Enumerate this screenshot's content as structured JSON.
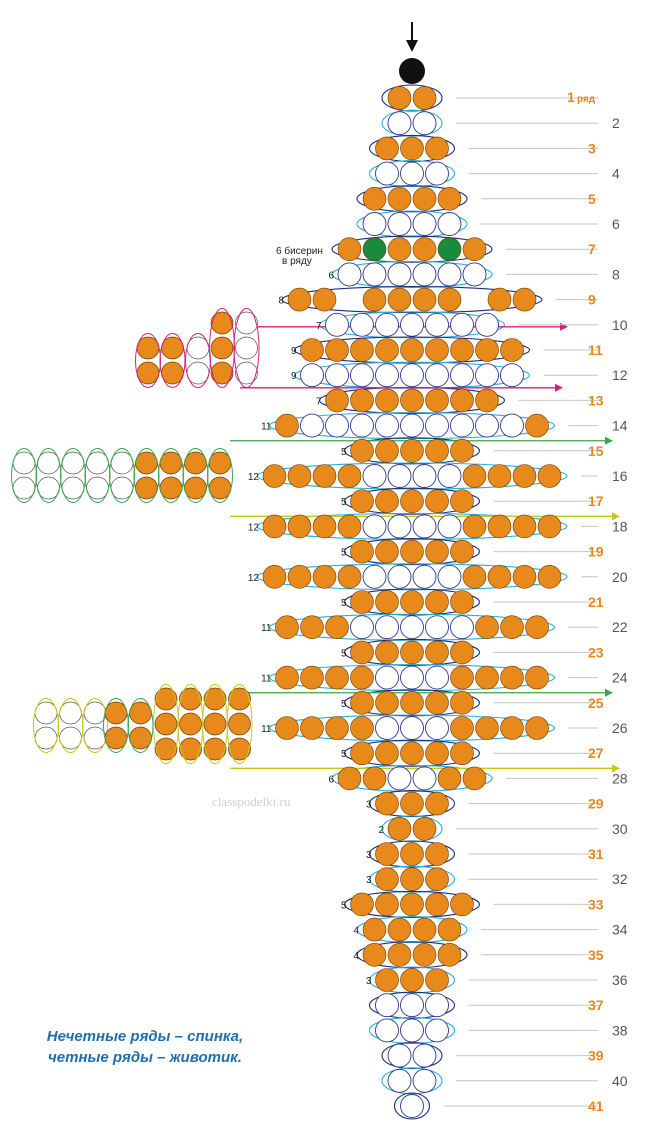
{
  "first_row_label": "1",
  "first_row_suffix": "ряд",
  "note_line1": "6 бисерин",
  "note_line2": "в ряду",
  "legend_line1": "Нечетные ряды –  спинка,",
  "legend_line2": "четные ряды – животик.",
  "watermark": "classpodelki.ru",
  "colors": {
    "orange_bead": "#e8891c",
    "green_bead": "#1a8a3c",
    "black_bead": "#111111",
    "odd_label": "#e8891c",
    "thread_blue": "#2ab0d8",
    "thread_navy": "#1c2f7a",
    "thread_magenta": "#d6217a",
    "thread_green": "#3aa54a",
    "thread_yellow": "#c8c814"
  },
  "top_bead": "black",
  "rows": [
    {
      "n": "1",
      "beads": [
        "o",
        "o"
      ]
    },
    {
      "n": "2",
      "beads": [
        "w",
        "w"
      ]
    },
    {
      "n": "3",
      "beads": [
        "o",
        "o",
        "o"
      ]
    },
    {
      "n": "4",
      "beads": [
        "w",
        "w",
        "w"
      ]
    },
    {
      "n": "5",
      "beads": [
        "o",
        "o",
        "o",
        "o"
      ]
    },
    {
      "n": "6",
      "beads": [
        "w",
        "w",
        "w",
        "w"
      ]
    },
    {
      "n": "7",
      "count": "",
      "beads": [
        "o",
        "g",
        "o",
        "o",
        "g",
        "o"
      ]
    },
    {
      "n": "8",
      "count": "6",
      "beads": [
        "w",
        "w",
        "w",
        "w",
        "w",
        "w"
      ]
    },
    {
      "n": "9",
      "count": "8",
      "beads": [
        "o",
        "o",
        "_",
        "o",
        "o",
        "o",
        "o",
        "_",
        "o",
        "o"
      ]
    },
    {
      "n": "10",
      "count": "7",
      "beads": [
        "w",
        "w",
        "w",
        "w",
        "w",
        "w",
        "w"
      ]
    },
    {
      "n": "11",
      "count": "9",
      "beads": [
        "o",
        "o",
        "o",
        "o",
        "o",
        "o",
        "o",
        "o",
        "o"
      ]
    },
    {
      "n": "12",
      "count": "9",
      "beads": [
        "w",
        "w",
        "w",
        "w",
        "w",
        "w",
        "w",
        "w",
        "w"
      ]
    },
    {
      "n": "13",
      "count": "7",
      "beads": [
        "o",
        "o",
        "o",
        "o",
        "o",
        "o",
        "o"
      ]
    },
    {
      "n": "14",
      "count": "11",
      "beads": [
        "o",
        "w",
        "w",
        "w",
        "w",
        "w",
        "w",
        "w",
        "w",
        "w",
        "o"
      ]
    },
    {
      "n": "15",
      "count": "5",
      "beads": [
        "o",
        "o",
        "o",
        "o",
        "o"
      ]
    },
    {
      "n": "16",
      "count": "12",
      "beads": [
        "o",
        "o",
        "o",
        "o",
        "w",
        "w",
        "w",
        "w",
        "o",
        "o",
        "o",
        "o"
      ]
    },
    {
      "n": "17",
      "count": "5",
      "beads": [
        "o",
        "o",
        "o",
        "o",
        "o"
      ]
    },
    {
      "n": "18",
      "count": "12",
      "beads": [
        "o",
        "o",
        "o",
        "o",
        "w",
        "w",
        "w",
        "w",
        "o",
        "o",
        "o",
        "o"
      ]
    },
    {
      "n": "19",
      "count": "5",
      "beads": [
        "o",
        "o",
        "o",
        "o",
        "o"
      ]
    },
    {
      "n": "20",
      "count": "12",
      "beads": [
        "o",
        "o",
        "o",
        "o",
        "w",
        "w",
        "w",
        "w",
        "o",
        "o",
        "o",
        "o"
      ]
    },
    {
      "n": "21",
      "count": "5",
      "beads": [
        "o",
        "o",
        "o",
        "o",
        "o"
      ]
    },
    {
      "n": "22",
      "count": "11",
      "beads": [
        "o",
        "o",
        "o",
        "w",
        "w",
        "w",
        "w",
        "w",
        "o",
        "o",
        "o"
      ]
    },
    {
      "n": "23",
      "count": "5",
      "beads": [
        "o",
        "o",
        "o",
        "o",
        "o"
      ]
    },
    {
      "n": "24",
      "count": "11",
      "beads": [
        "o",
        "o",
        "o",
        "o",
        "w",
        "w",
        "w",
        "o",
        "o",
        "o",
        "o"
      ]
    },
    {
      "n": "25",
      "count": "5",
      "beads": [
        "o",
        "o",
        "o",
        "o",
        "o"
      ]
    },
    {
      "n": "26",
      "count": "11",
      "beads": [
        "o",
        "o",
        "o",
        "o",
        "w",
        "w",
        "w",
        "o",
        "o",
        "o",
        "o"
      ]
    },
    {
      "n": "27",
      "count": "5",
      "beads": [
        "o",
        "o",
        "o",
        "o",
        "o"
      ]
    },
    {
      "n": "28",
      "count": "6",
      "beads": [
        "o",
        "o",
        "w",
        "w",
        "o",
        "o"
      ]
    },
    {
      "n": "29",
      "count": "3",
      "beads": [
        "o",
        "o",
        "o"
      ]
    },
    {
      "n": "30",
      "count": "2",
      "beads": [
        "o",
        "o"
      ]
    },
    {
      "n": "31",
      "count": "3",
      "beads": [
        "o",
        "o",
        "o"
      ]
    },
    {
      "n": "32",
      "count": "3",
      "beads": [
        "o",
        "o",
        "o"
      ]
    },
    {
      "n": "33",
      "count": "5",
      "beads": [
        "o",
        "o",
        "o",
        "o",
        "o"
      ]
    },
    {
      "n": "34",
      "count": "4",
      "beads": [
        "o",
        "o",
        "o",
        "o"
      ]
    },
    {
      "n": "35",
      "count": "4",
      "beads": [
        "o",
        "o",
        "o",
        "o"
      ]
    },
    {
      "n": "36",
      "count": "3",
      "beads": [
        "o",
        "o",
        "o"
      ]
    },
    {
      "n": "37",
      "beads": [
        "w",
        "w",
        "w"
      ]
    },
    {
      "n": "38",
      "beads": [
        "w",
        "w",
        "w"
      ]
    },
    {
      "n": "39",
      "beads": [
        "w",
        "w"
      ]
    },
    {
      "n": "40",
      "beads": [
        "w",
        "w"
      ]
    },
    {
      "n": "41",
      "beads": [
        "w"
      ]
    }
  ]
}
